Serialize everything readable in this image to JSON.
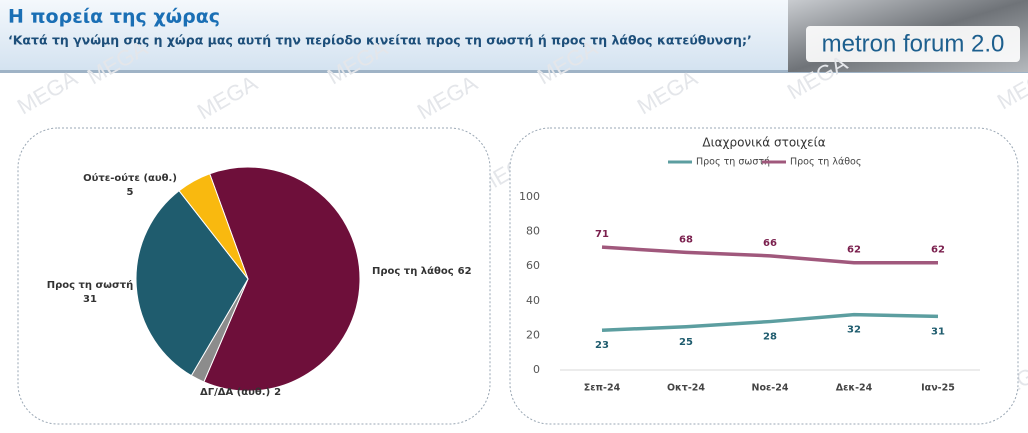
{
  "header": {
    "title": "Η πορεία της χώρας",
    "subtitle": "‘Κατά τη γνώμη σας η χώρα μας αυτή την περίοδο κινείται προς τη σωστή ή προς τη λάθος κατεύθυνση;’",
    "logo": "metron forum 2.0",
    "watermark": "MEGA"
  },
  "chart_data": [
    {
      "type": "pie",
      "categories": [
        "Προς τη λάθος",
        "ΔΓ/ΔΑ (αυθ.)",
        "Προς τη σωστή",
        "Ούτε-ούτε (αυθ.)"
      ],
      "values": [
        62,
        2,
        31,
        5
      ],
      "colors": [
        "#6e0f3a",
        "#8c8c8c",
        "#1f5c6e",
        "#f9b90f"
      ]
    },
    {
      "type": "line",
      "title": "Διαχρονικά στοιχεία",
      "categories": [
        "Σεπ-24",
        "Οκτ-24",
        "Νοε-24",
        "Δεκ-24",
        "Ιαν-25"
      ],
      "series": [
        {
          "name": "Προς τη σωστή",
          "color": "#5c9ea0",
          "values": [
            23,
            25,
            28,
            32,
            31
          ]
        },
        {
          "name": "Προς τη λάθος",
          "color": "#a0587c",
          "values": [
            71,
            68,
            66,
            62,
            62
          ]
        }
      ],
      "ylim": [
        0,
        100
      ],
      "yticks": [
        0,
        20,
        40,
        60,
        80,
        100
      ]
    }
  ]
}
